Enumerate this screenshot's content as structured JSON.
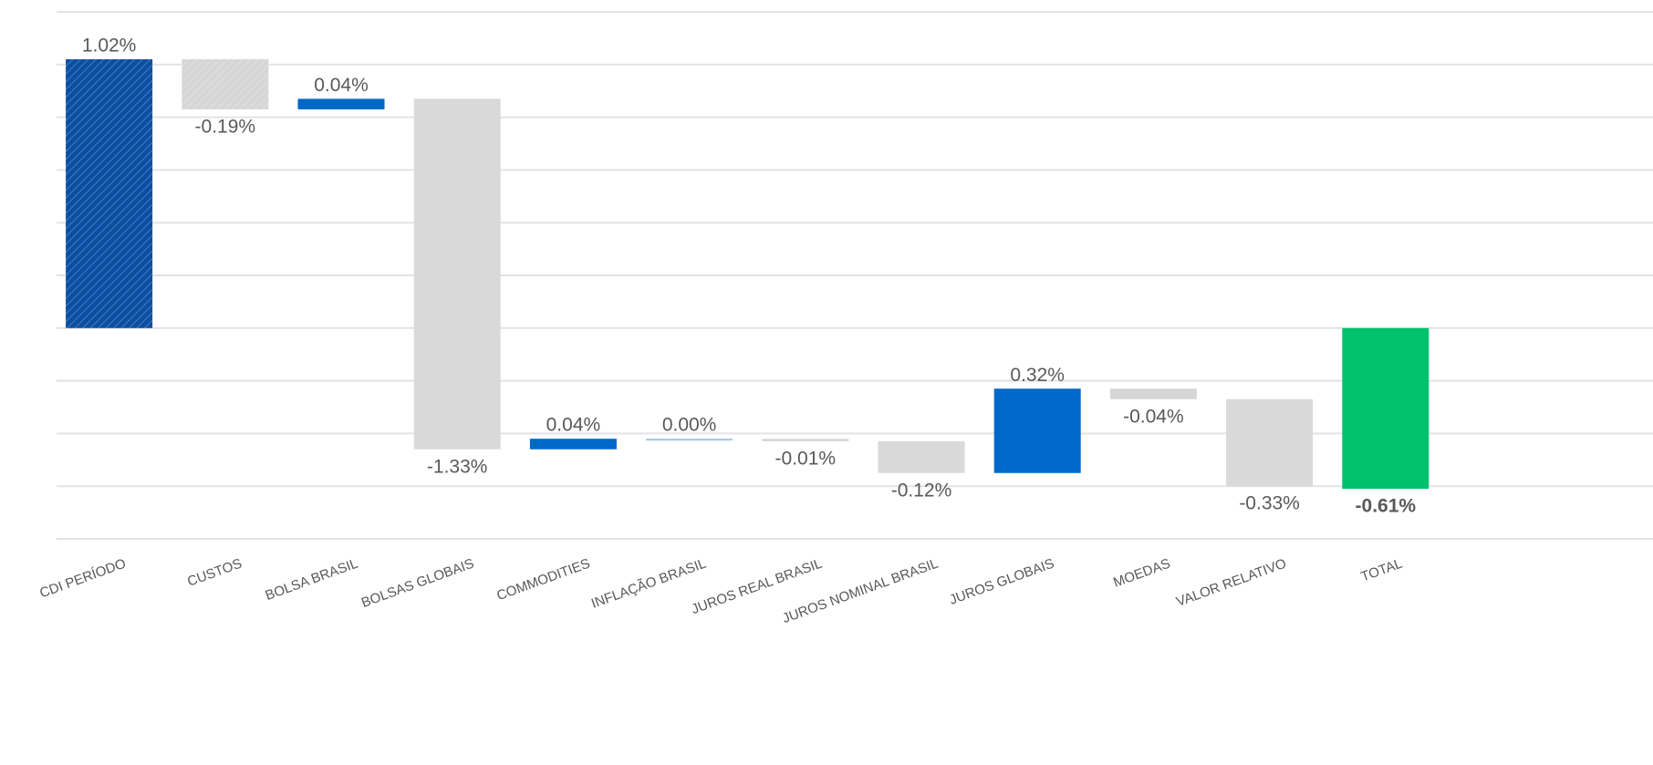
{
  "chart_data": {
    "type": "waterfall",
    "categories": [
      "CDI PERÍODO",
      "CUSTOS",
      "BOLSA BRASIL",
      "BOLSAS GLOBAIS",
      "COMMODITIES",
      "INFLAÇÃO BRASIL",
      "JUROS REAL BRASIL",
      "JUROS NOMINAL BRASIL",
      "JUROS GLOBAIS",
      "MOEDAS",
      "VALOR RELATIVO",
      "TOTAL"
    ],
    "values": [
      1.02,
      -0.19,
      0.04,
      -1.33,
      0.04,
      0.0,
      -0.01,
      -0.12,
      0.32,
      -0.04,
      -0.33,
      -0.61
    ],
    "value_labels": [
      "1.02%",
      "-0.19%",
      "0.04%",
      "-1.33%",
      "0.04%",
      "0.00%",
      "-0.01%",
      "-0.12%",
      "0.32%",
      "-0.04%",
      "-0.33%",
      "-0.61%"
    ],
    "measure": [
      "absolute",
      "relative",
      "relative",
      "relative",
      "relative",
      "relative",
      "relative",
      "relative",
      "relative",
      "relative",
      "relative",
      "total"
    ],
    "colors": [
      "#0b4fa3",
      "#d6d6d6",
      "#0068c9",
      "#d9d9d9",
      "#0068c9",
      "#9cc3ea",
      "#d9d9d9",
      "#d9d9d9",
      "#0068c9",
      "#d6d6d6",
      "#d9d9d9",
      "#00c16e"
    ],
    "ylim": [
      -0.8,
      1.2
    ],
    "yticks": [
      -0.8,
      -0.6,
      -0.4,
      -0.2,
      0,
      0.2,
      0.4,
      0.6,
      0.8,
      1.0,
      1.2
    ],
    "grid": true
  }
}
